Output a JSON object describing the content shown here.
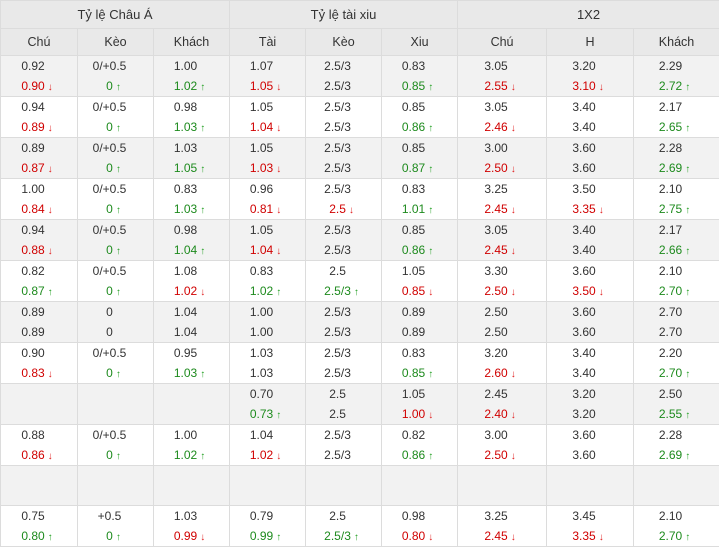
{
  "groups": {
    "asian": "Tỷ lệ Châu Á",
    "ou": "Tỷ lệ tài xiu",
    "x12": "1X2"
  },
  "columns": [
    "Chú",
    "Kèo",
    "Khách",
    "Tài",
    "Kèo",
    "Xiu",
    "Chú",
    "H",
    "Khách"
  ],
  "colors": {
    "down": "#d00000",
    "up": "#1d8a1d",
    "header_bg": "#e9e9e9"
  },
  "arrow_icons": {
    "up": "↑",
    "down": "↓"
  },
  "rows": [
    {
      "shade": true,
      "cells": [
        [
          {
            "v": "0.92"
          },
          {
            "v": "0.90",
            "d": "down"
          }
        ],
        [
          {
            "v": "0/+0.5"
          },
          {
            "v": "0",
            "d": "up"
          }
        ],
        [
          {
            "v": "1.00"
          },
          {
            "v": "1.02",
            "d": "up"
          }
        ],
        [
          {
            "v": "1.07"
          },
          {
            "v": "1.05",
            "d": "down"
          }
        ],
        [
          {
            "v": "2.5/3"
          },
          {
            "v": "2.5/3"
          }
        ],
        [
          {
            "v": "0.83"
          },
          {
            "v": "0.85",
            "d": "up"
          }
        ],
        [
          {
            "v": "3.05"
          },
          {
            "v": "2.55",
            "d": "down"
          }
        ],
        [
          {
            "v": "3.20"
          },
          {
            "v": "3.10",
            "d": "down"
          }
        ],
        [
          {
            "v": "2.29"
          },
          {
            "v": "2.72",
            "d": "up"
          }
        ]
      ]
    },
    {
      "shade": false,
      "cells": [
        [
          {
            "v": "0.94"
          },
          {
            "v": "0.89",
            "d": "down"
          }
        ],
        [
          {
            "v": "0/+0.5"
          },
          {
            "v": "0",
            "d": "up"
          }
        ],
        [
          {
            "v": "0.98"
          },
          {
            "v": "1.03",
            "d": "up"
          }
        ],
        [
          {
            "v": "1.05"
          },
          {
            "v": "1.04",
            "d": "down"
          }
        ],
        [
          {
            "v": "2.5/3"
          },
          {
            "v": "2.5/3"
          }
        ],
        [
          {
            "v": "0.85"
          },
          {
            "v": "0.86",
            "d": "up"
          }
        ],
        [
          {
            "v": "3.05"
          },
          {
            "v": "2.46",
            "d": "down"
          }
        ],
        [
          {
            "v": "3.40"
          },
          {
            "v": "3.40"
          }
        ],
        [
          {
            "v": "2.17"
          },
          {
            "v": "2.65",
            "d": "up"
          }
        ]
      ]
    },
    {
      "shade": true,
      "cells": [
        [
          {
            "v": "0.89"
          },
          {
            "v": "0.87",
            "d": "down"
          }
        ],
        [
          {
            "v": "0/+0.5"
          },
          {
            "v": "0",
            "d": "up"
          }
        ],
        [
          {
            "v": "1.03"
          },
          {
            "v": "1.05",
            "d": "up"
          }
        ],
        [
          {
            "v": "1.05"
          },
          {
            "v": "1.03",
            "d": "down"
          }
        ],
        [
          {
            "v": "2.5/3"
          },
          {
            "v": "2.5/3"
          }
        ],
        [
          {
            "v": "0.85"
          },
          {
            "v": "0.87",
            "d": "up"
          }
        ],
        [
          {
            "v": "3.00"
          },
          {
            "v": "2.50",
            "d": "down"
          }
        ],
        [
          {
            "v": "3.60"
          },
          {
            "v": "3.60"
          }
        ],
        [
          {
            "v": "2.28"
          },
          {
            "v": "2.69",
            "d": "up"
          }
        ]
      ]
    },
    {
      "shade": false,
      "cells": [
        [
          {
            "v": "1.00"
          },
          {
            "v": "0.84",
            "d": "down"
          }
        ],
        [
          {
            "v": "0/+0.5"
          },
          {
            "v": "0",
            "d": "up"
          }
        ],
        [
          {
            "v": "0.83"
          },
          {
            "v": "1.03",
            "d": "up"
          }
        ],
        [
          {
            "v": "0.96"
          },
          {
            "v": "0.81",
            "d": "down"
          }
        ],
        [
          {
            "v": "2.5/3"
          },
          {
            "v": "2.5",
            "d": "down"
          }
        ],
        [
          {
            "v": "0.83"
          },
          {
            "v": "1.01",
            "d": "up"
          }
        ],
        [
          {
            "v": "3.25"
          },
          {
            "v": "2.45",
            "d": "down"
          }
        ],
        [
          {
            "v": "3.50"
          },
          {
            "v": "3.35",
            "d": "down"
          }
        ],
        [
          {
            "v": "2.10"
          },
          {
            "v": "2.75",
            "d": "up"
          }
        ]
      ]
    },
    {
      "shade": true,
      "cells": [
        [
          {
            "v": "0.94"
          },
          {
            "v": "0.88",
            "d": "down"
          }
        ],
        [
          {
            "v": "0/+0.5"
          },
          {
            "v": "0",
            "d": "up"
          }
        ],
        [
          {
            "v": "0.98"
          },
          {
            "v": "1.04",
            "d": "up"
          }
        ],
        [
          {
            "v": "1.05"
          },
          {
            "v": "1.04",
            "d": "down"
          }
        ],
        [
          {
            "v": "2.5/3"
          },
          {
            "v": "2.5/3"
          }
        ],
        [
          {
            "v": "0.85"
          },
          {
            "v": "0.86",
            "d": "up"
          }
        ],
        [
          {
            "v": "3.05"
          },
          {
            "v": "2.45",
            "d": "down"
          }
        ],
        [
          {
            "v": "3.40"
          },
          {
            "v": "3.40"
          }
        ],
        [
          {
            "v": "2.17"
          },
          {
            "v": "2.66",
            "d": "up"
          }
        ]
      ]
    },
    {
      "shade": false,
      "cells": [
        [
          {
            "v": "0.82"
          },
          {
            "v": "0.87",
            "d": "up"
          }
        ],
        [
          {
            "v": "0/+0.5"
          },
          {
            "v": "0",
            "d": "up"
          }
        ],
        [
          {
            "v": "1.08"
          },
          {
            "v": "1.02",
            "d": "down"
          }
        ],
        [
          {
            "v": "0.83"
          },
          {
            "v": "1.02",
            "d": "up"
          }
        ],
        [
          {
            "v": "2.5"
          },
          {
            "v": "2.5/3",
            "d": "up"
          }
        ],
        [
          {
            "v": "1.05"
          },
          {
            "v": "0.85",
            "d": "down"
          }
        ],
        [
          {
            "v": "3.30"
          },
          {
            "v": "2.50",
            "d": "down"
          }
        ],
        [
          {
            "v": "3.60"
          },
          {
            "v": "3.50",
            "d": "down"
          }
        ],
        [
          {
            "v": "2.10"
          },
          {
            "v": "2.70",
            "d": "up"
          }
        ]
      ]
    },
    {
      "shade": true,
      "cells": [
        [
          {
            "v": "0.89"
          },
          {
            "v": "0.89"
          }
        ],
        [
          {
            "v": "0"
          },
          {
            "v": "0"
          }
        ],
        [
          {
            "v": "1.04"
          },
          {
            "v": "1.04"
          }
        ],
        [
          {
            "v": "1.00"
          },
          {
            "v": "1.00"
          }
        ],
        [
          {
            "v": "2.5/3"
          },
          {
            "v": "2.5/3"
          }
        ],
        [
          {
            "v": "0.89"
          },
          {
            "v": "0.89"
          }
        ],
        [
          {
            "v": "2.50"
          },
          {
            "v": "2.50"
          }
        ],
        [
          {
            "v": "3.60"
          },
          {
            "v": "3.60"
          }
        ],
        [
          {
            "v": "2.70"
          },
          {
            "v": "2.70"
          }
        ]
      ]
    },
    {
      "shade": false,
      "cells": [
        [
          {
            "v": "0.90"
          },
          {
            "v": "0.83",
            "d": "down"
          }
        ],
        [
          {
            "v": "0/+0.5"
          },
          {
            "v": "0",
            "d": "up"
          }
        ],
        [
          {
            "v": "0.95"
          },
          {
            "v": "1.03",
            "d": "up"
          }
        ],
        [
          {
            "v": "1.03"
          },
          {
            "v": "1.03"
          }
        ],
        [
          {
            "v": "2.5/3"
          },
          {
            "v": "2.5/3"
          }
        ],
        [
          {
            "v": "0.83"
          },
          {
            "v": "0.85",
            "d": "up"
          }
        ],
        [
          {
            "v": "3.20"
          },
          {
            "v": "2.60",
            "d": "down"
          }
        ],
        [
          {
            "v": "3.40"
          },
          {
            "v": "3.40"
          }
        ],
        [
          {
            "v": "2.20"
          },
          {
            "v": "2.70",
            "d": "up"
          }
        ]
      ]
    },
    {
      "shade": true,
      "cells": [
        [],
        [],
        [],
        [
          {
            "v": "0.70"
          },
          {
            "v": "0.73",
            "d": "up"
          }
        ],
        [
          {
            "v": "2.5"
          },
          {
            "v": "2.5"
          }
        ],
        [
          {
            "v": "1.05"
          },
          {
            "v": "1.00",
            "d": "down"
          }
        ],
        [
          {
            "v": "2.45"
          },
          {
            "v": "2.40",
            "d": "down"
          }
        ],
        [
          {
            "v": "3.20"
          },
          {
            "v": "3.20"
          }
        ],
        [
          {
            "v": "2.50"
          },
          {
            "v": "2.55",
            "d": "up"
          }
        ]
      ]
    },
    {
      "shade": false,
      "cells": [
        [
          {
            "v": "0.88"
          },
          {
            "v": "0.86",
            "d": "down"
          }
        ],
        [
          {
            "v": "0/+0.5"
          },
          {
            "v": "0",
            "d": "up"
          }
        ],
        [
          {
            "v": "1.00"
          },
          {
            "v": "1.02",
            "d": "up"
          }
        ],
        [
          {
            "v": "1.04"
          },
          {
            "v": "1.02",
            "d": "down"
          }
        ],
        [
          {
            "v": "2.5/3"
          },
          {
            "v": "2.5/3"
          }
        ],
        [
          {
            "v": "0.82"
          },
          {
            "v": "0.86",
            "d": "up"
          }
        ],
        [
          {
            "v": "3.00"
          },
          {
            "v": "2.50",
            "d": "down"
          }
        ],
        [
          {
            "v": "3.60"
          },
          {
            "v": "3.60"
          }
        ],
        [
          {
            "v": "2.28"
          },
          {
            "v": "2.69",
            "d": "up"
          }
        ]
      ]
    },
    {
      "shade": true,
      "empty": true,
      "cells": [
        [],
        [],
        [],
        [],
        [],
        [],
        [],
        [],
        []
      ]
    },
    {
      "shade": false,
      "cells": [
        [
          {
            "v": "0.75"
          },
          {
            "v": "0.80",
            "d": "up"
          }
        ],
        [
          {
            "v": "+0.5"
          },
          {
            "v": "0",
            "d": "up"
          }
        ],
        [
          {
            "v": "1.03"
          },
          {
            "v": "0.99",
            "d": "down"
          }
        ],
        [
          {
            "v": "0.79"
          },
          {
            "v": "0.99",
            "d": "up"
          }
        ],
        [
          {
            "v": "2.5"
          },
          {
            "v": "2.5/3",
            "d": "up"
          }
        ],
        [
          {
            "v": "0.98"
          },
          {
            "v": "0.80",
            "d": "down"
          }
        ],
        [
          {
            "v": "3.25"
          },
          {
            "v": "2.45",
            "d": "down"
          }
        ],
        [
          {
            "v": "3.45"
          },
          {
            "v": "3.35",
            "d": "down"
          }
        ],
        [
          {
            "v": "2.10"
          },
          {
            "v": "2.70",
            "d": "up"
          }
        ]
      ]
    }
  ]
}
